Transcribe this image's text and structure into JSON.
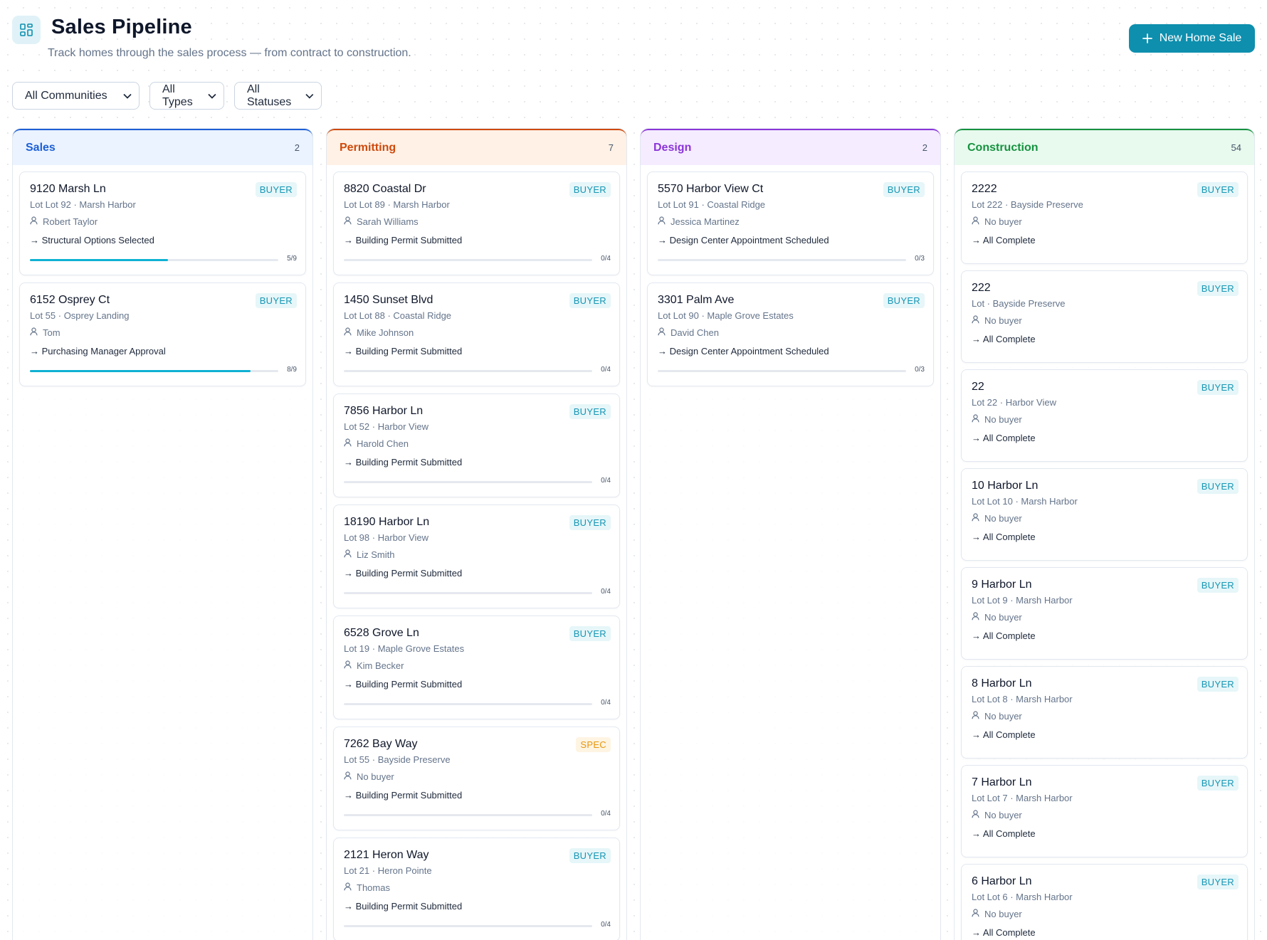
{
  "header": {
    "title": "Sales Pipeline",
    "subtitle": "Track homes through the sales process — from contract to construction.",
    "new_button_label": "New Home Sale"
  },
  "filters": [
    {
      "label": "All Communities"
    },
    {
      "label": "All Types"
    },
    {
      "label": "All Statuses"
    }
  ],
  "columns": [
    {
      "id": "sales",
      "title": "Sales",
      "count": "2",
      "color": "#1d5fd6",
      "bg": "#eaf3ff",
      "cards": [
        {
          "address": "9120 Marsh Ln",
          "badge": "BUYER",
          "lot": "Lot Lot 92 · Marsh Harbor",
          "buyer": "Robert Taylor",
          "next": "→ Structural Options Selected",
          "progress_text": "5/9",
          "progress": 0.5556
        },
        {
          "address": "6152 Osprey Ct",
          "badge": "BUYER",
          "lot": "Lot 55 · Osprey Landing",
          "buyer": "Tom",
          "next": "→ Purchasing Manager Approval",
          "progress_text": "8/9",
          "progress": 0.8889
        }
      ]
    },
    {
      "id": "permitting",
      "title": "Permitting",
      "count": "7",
      "color": "#cf4a0c",
      "bg": "#fff1e6",
      "cards": [
        {
          "address": "8820 Coastal Dr",
          "badge": "BUYER",
          "lot": "Lot Lot 89 · Marsh Harbor",
          "buyer": "Sarah Williams",
          "next": "→ Building Permit Submitted",
          "progress_text": "0/4",
          "progress": 0
        },
        {
          "address": "1450 Sunset Blvd",
          "badge": "BUYER",
          "lot": "Lot Lot 88 · Coastal Ridge",
          "buyer": "Mike Johnson",
          "next": "→ Building Permit Submitted",
          "progress_text": "0/4",
          "progress": 0
        },
        {
          "address": "7856 Harbor Ln",
          "badge": "BUYER",
          "lot": "Lot 52 · Harbor View",
          "buyer": "Harold Chen",
          "next": "→ Building Permit Submitted",
          "progress_text": "0/4",
          "progress": 0
        },
        {
          "address": "18190 Harbor Ln",
          "badge": "BUYER",
          "lot": "Lot 98 · Harbor View",
          "buyer": "Liz Smith",
          "next": "→ Building Permit Submitted",
          "progress_text": "0/4",
          "progress": 0
        },
        {
          "address": "6528 Grove Ln",
          "badge": "BUYER",
          "lot": "Lot 19 · Maple Grove Estates",
          "buyer": "Kim Becker",
          "next": "→ Building Permit Submitted",
          "progress_text": "0/4",
          "progress": 0
        },
        {
          "address": "7262 Bay Way",
          "badge": "SPEC",
          "lot": "Lot 55 · Bayside Preserve",
          "buyer": "No buyer",
          "next": "→ Building Permit Submitted",
          "progress_text": "0/4",
          "progress": 0
        },
        {
          "address": "2121 Heron Way",
          "badge": "BUYER",
          "lot": "Lot 21 · Heron Pointe",
          "buyer": "Thomas",
          "next": "→ Building Permit Submitted",
          "progress_text": "0/4",
          "progress": 0
        }
      ]
    },
    {
      "id": "design",
      "title": "Design",
      "count": "2",
      "color": "#8b35d8",
      "bg": "#f5ecff",
      "cards": [
        {
          "address": "5570 Harbor View Ct",
          "badge": "BUYER",
          "lot": "Lot Lot 91 · Coastal Ridge",
          "buyer": "Jessica Martinez",
          "next": "→ Design Center Appointment Scheduled",
          "progress_text": "0/3",
          "progress": 0
        },
        {
          "address": "3301 Palm Ave",
          "badge": "BUYER",
          "lot": "Lot Lot 90 · Maple Grove Estates",
          "buyer": "David Chen",
          "next": "→ Design Center Appointment Scheduled",
          "progress_text": "0/3",
          "progress": 0
        }
      ]
    },
    {
      "id": "construction",
      "title": "Construction",
      "count": "54",
      "color": "#15923f",
      "bg": "#e8faee",
      "cards": [
        {
          "address": "2222",
          "badge": "BUYER",
          "lot": "Lot 222 · Bayside Preserve",
          "buyer": "No buyer",
          "next": "→ All Complete"
        },
        {
          "address": "222",
          "badge": "BUYER",
          "lot": "Lot · Bayside Preserve",
          "buyer": "No buyer",
          "next": "→ All Complete"
        },
        {
          "address": "22",
          "badge": "BUYER",
          "lot": "Lot 22 · Harbor View",
          "buyer": "No buyer",
          "next": "→ All Complete"
        },
        {
          "address": "10 Harbor Ln",
          "badge": "BUYER",
          "lot": "Lot Lot 10 · Marsh Harbor",
          "buyer": "No buyer",
          "next": "→ All Complete"
        },
        {
          "address": "9 Harbor Ln",
          "badge": "BUYER",
          "lot": "Lot Lot 9 · Marsh Harbor",
          "buyer": "No buyer",
          "next": "→ All Complete"
        },
        {
          "address": "8 Harbor Ln",
          "badge": "BUYER",
          "lot": "Lot Lot 8 · Marsh Harbor",
          "buyer": "No buyer",
          "next": "→ All Complete"
        },
        {
          "address": "7 Harbor Ln",
          "badge": "BUYER",
          "lot": "Lot Lot 7 · Marsh Harbor",
          "buyer": "No buyer",
          "next": "→ All Complete"
        },
        {
          "address": "6 Harbor Ln",
          "badge": "BUYER",
          "lot": "Lot Lot 6 · Marsh Harbor",
          "buyer": "No buyer",
          "next": "→ All Complete"
        }
      ]
    }
  ],
  "icons": {
    "logo": "kanban-grid-icon",
    "new_button": "plus-icon",
    "select": "chevron-down-icon",
    "buyer": "user-icon"
  }
}
